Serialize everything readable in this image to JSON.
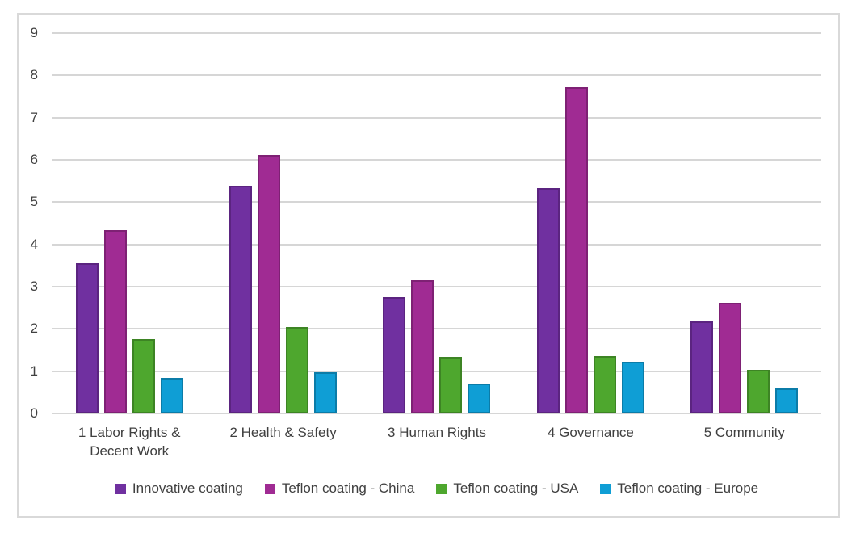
{
  "chart_data": {
    "type": "bar",
    "title": "",
    "xlabel": "",
    "ylabel": "",
    "categories": [
      "1 Labor Rights & Decent Work",
      "2 Health & Safety",
      "3 Human Rights",
      "4 Governance",
      "5 Community"
    ],
    "series": [
      {
        "name": "Innovative coating",
        "color": "#7030A0",
        "border_color": "#5B2480",
        "values": [
          3.55,
          5.38,
          2.76,
          5.33,
          2.18
        ]
      },
      {
        "name": "Teflon coating - China",
        "color": "#A02B93",
        "border_color": "#7E2174",
        "values": [
          4.34,
          6.12,
          3.16,
          7.72,
          2.62
        ]
      },
      {
        "name": "Teflon coating - USA",
        "color": "#4EA72E",
        "border_color": "#3D8424",
        "values": [
          1.76,
          2.05,
          1.34,
          1.36,
          1.04
        ]
      },
      {
        "name": "Teflon coating - Europe",
        "color": "#0F9ED5",
        "border_color": "#0B7CA8",
        "values": [
          0.84,
          0.97,
          0.71,
          1.22,
          0.59
        ]
      }
    ],
    "ylim": [
      0,
      9
    ],
    "yticks": [
      0,
      1,
      2,
      3,
      4,
      5,
      6,
      7,
      8,
      9
    ],
    "grid": true,
    "legend_position": "bottom",
    "colors": {
      "gridline": "#D6D6D6",
      "frame_border": "#D9D9D9",
      "text": "#404040",
      "background": "#FFFFFF"
    }
  }
}
